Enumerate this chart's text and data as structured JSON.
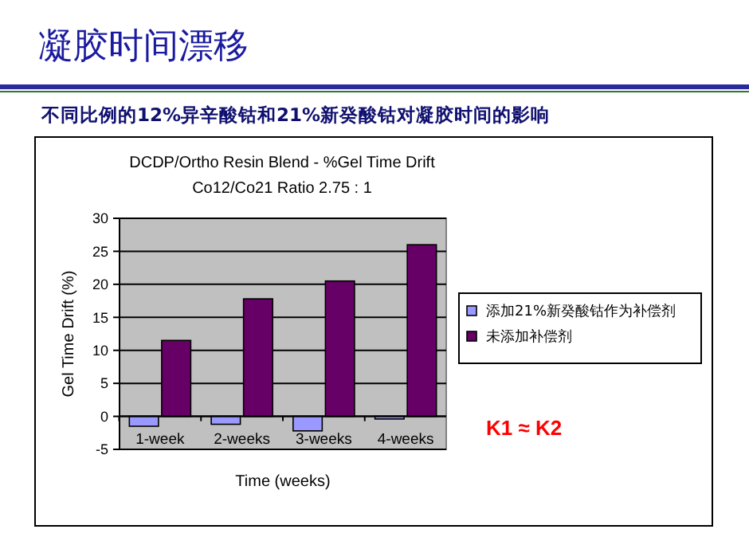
{
  "chart_data": {
    "type": "bar",
    "title": "凝胶时间漂移",
    "subtitle": "不同比例的12%异辛酸钴和21%新癸酸钴对凝胶时间的影响",
    "annotations": [
      "DCDP/Ortho Resin Blend  - %Gel Time Drift",
      "Co12/Co21 Ratio 2.75 : 1",
      "K1 ≈ K2"
    ],
    "xlabel": "Time  (weeks)",
    "ylabel": "Gel Time Drift (%)",
    "categories": [
      "1-week",
      "2-weeks",
      "3-weeks",
      "4-weeks"
    ],
    "series": [
      {
        "name": "添加21%新癸酸钴作为补偿剂",
        "color": "#9999ff",
        "values": [
          -1.5,
          -1.2,
          -2.2,
          -0.4
        ]
      },
      {
        "name": "未添加补偿剂",
        "color": "#660066",
        "values": [
          11.5,
          17.8,
          20.5,
          26
        ]
      }
    ],
    "ylim": [
      -5,
      30
    ],
    "yticks": [
      -5,
      0,
      5,
      10,
      15,
      20,
      25,
      30
    ],
    "grid": "y",
    "legend": "right"
  }
}
